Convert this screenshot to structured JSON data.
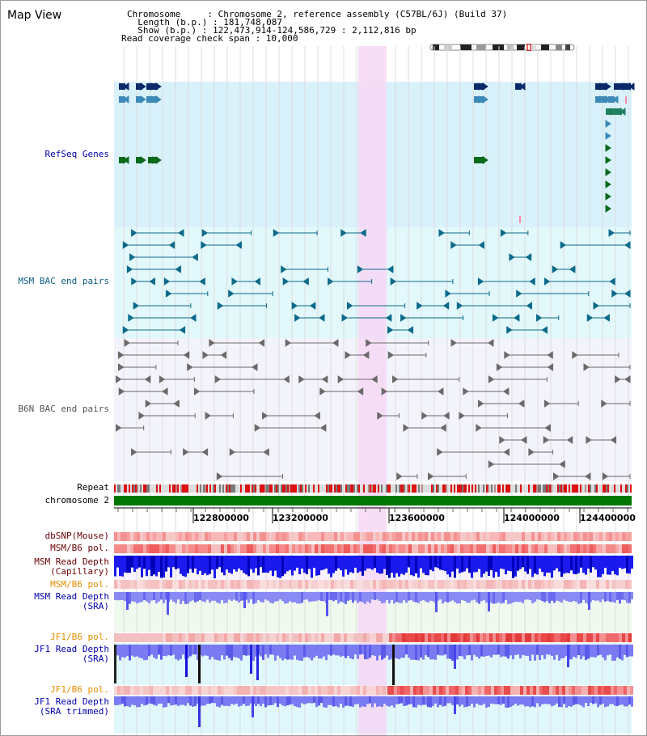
{
  "title": "Map View",
  "header": {
    "line1": "Chromosome     : Chromosome 2, reference assembly (C57BL/6J) (Build 37)",
    "line2": "  Length (b.p.) : 181,748,087",
    "line3": "  Show (b.p.) : 122,473,914-124,586,729 : 2,112,816 bp",
    "line4": "Read coverage check span : 10,000"
  },
  "tracks": {
    "refseq": "RefSeq Genes",
    "msm_bac": "MSM BAC end pairs",
    "b6n_bac": "B6N BAC end pairs",
    "repeat": "Repeat",
    "chromosome": "chromosome 2",
    "dbsnp": "dbSNP(Mouse)",
    "msm_b6_pol_1": "MSM/B6 pol.",
    "msm_read_depth_cap_1": "MSM Read Depth",
    "msm_read_depth_cap_2": "(Capillary)",
    "msm_b6_pol_2": "MSM/B6 pol.",
    "msm_read_depth_sra_1": "MSM Read Depth",
    "msm_read_depth_sra_2": "(SRA)",
    "jf1_b6_pol_1": "JF1/B6 pol.",
    "jf1_read_depth_sra_1": "JF1 Read Depth",
    "jf1_read_depth_sra_2": "(SRA)",
    "jf1_b6_pol_2": "JF1/B6 pol.",
    "jf1_read_depth_trim_1": "JF1 Read Depth",
    "jf1_read_depth_trim_2": "(SRA trimmed)"
  },
  "axis": {
    "ticks": [
      "122800000",
      "123200000",
      "123600000",
      "124000000",
      "124400000"
    ]
  },
  "colors": {
    "refseq_bg": "#d9f1fb",
    "msm_bg": "#e2f8fb",
    "b6n_bg": "#f3f3fb",
    "highlight": "#f6d8f4",
    "chromosome": "#007700",
    "label_blue": "#0000aa",
    "label_orange": "#e38d00"
  }
}
